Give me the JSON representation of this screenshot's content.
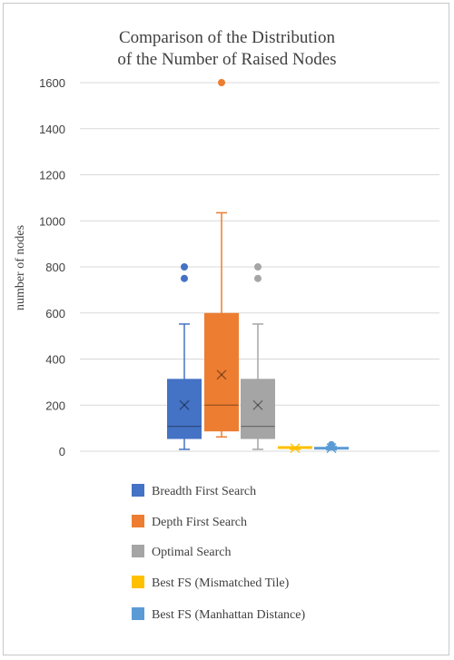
{
  "chart_data": {
    "type": "box",
    "title_line1": "Comparison of the Distribution",
    "title_line2": "of the Number of Raised Nodes",
    "ylabel": "number of nodes",
    "ylim": [
      0,
      1600
    ],
    "yticks": [
      0,
      200,
      400,
      600,
      800,
      1000,
      1200,
      1400,
      1600
    ],
    "grid": true,
    "legend_position": "bottom",
    "series": [
      {
        "name": "Breadth First Search",
        "color": "#4472C4",
        "min": 8,
        "q1": 55,
        "median": 108,
        "q3": 312,
        "max": 552,
        "mean": 200,
        "outliers": [
          750,
          800
        ]
      },
      {
        "name": "Depth First Search",
        "color": "#ED7D31",
        "min": 62,
        "q1": 88,
        "median": 200,
        "q3": 598,
        "max": 1035,
        "mean": 332,
        "outliers": [
          1600
        ]
      },
      {
        "name": "Optimal Search",
        "color": "#A5A5A5",
        "min": 8,
        "q1": 55,
        "median": 108,
        "q3": 312,
        "max": 552,
        "mean": 200,
        "outliers": [
          750,
          800
        ]
      },
      {
        "name": "Best FS (Mismatched Tile)",
        "color": "#FFC000",
        "min": 8,
        "q1": 10,
        "median": 12,
        "q3": 16,
        "max": 18,
        "mean": 13,
        "outliers": []
      },
      {
        "name": "Best FS (Manhattan Distance)",
        "color": "#5B9BD5",
        "min": 6,
        "q1": 9,
        "median": 12,
        "q3": 17,
        "max": 20,
        "mean": 13,
        "outliers": [
          28
        ]
      }
    ]
  }
}
